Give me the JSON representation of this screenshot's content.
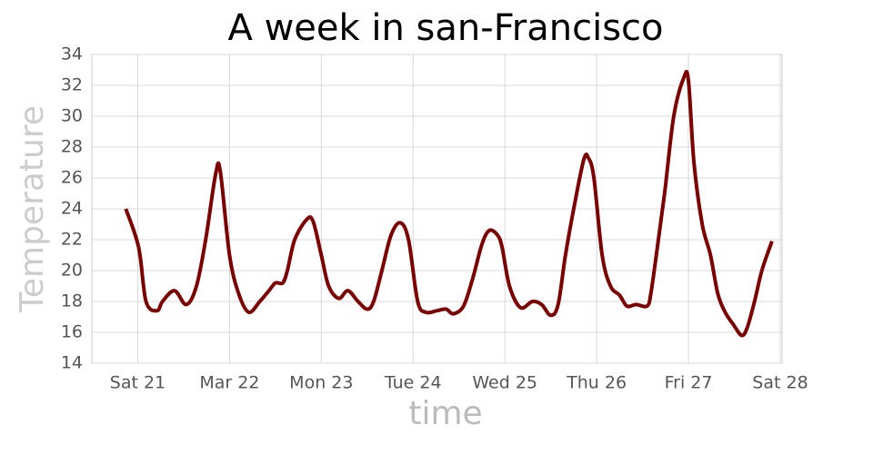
{
  "chart_data": {
    "type": "line",
    "title": "A week in san-Francisco",
    "x_label": "time",
    "y_label": "Temperature",
    "color": "#7b0000",
    "grid": true,
    "x": [
      -0.13,
      0.01,
      0.09,
      0.21,
      0.27,
      0.4,
      0.53,
      0.64,
      0.74,
      0.85,
      0.9,
      1.0,
      1.1,
      1.21,
      1.33,
      1.43,
      1.5,
      1.58,
      1.63,
      1.71,
      1.84,
      1.91,
      2.0,
      2.08,
      2.19,
      2.29,
      2.4,
      2.5,
      2.57,
      2.66,
      2.76,
      2.86,
      2.95,
      3.05,
      3.14,
      3.26,
      3.36,
      3.44,
      3.55,
      3.65,
      3.75,
      3.83,
      3.92,
      3.97,
      4.05,
      4.17,
      4.3,
      4.4,
      4.5,
      4.58,
      4.66,
      4.75,
      4.86,
      4.91,
      4.97,
      5.06,
      5.15,
      5.25,
      5.33,
      5.43,
      5.55,
      5.59,
      5.65,
      5.74,
      5.84,
      5.95,
      6.0,
      6.06,
      6.15,
      6.24,
      6.32,
      6.4,
      6.49,
      6.58,
      6.64,
      6.72,
      6.8,
      6.91
    ],
    "values": [
      24,
      21.5,
      18,
      17.4,
      18,
      18.7,
      17.8,
      19,
      22,
      26.3,
      26.4,
      21,
      18.5,
      17.3,
      18,
      18.7,
      19.2,
      19.2,
      20,
      22,
      23.3,
      23.2,
      21,
      19,
      18.2,
      18.7,
      18,
      17.5,
      18,
      20,
      22.3,
      23.1,
      22,
      18,
      17.3,
      17.4,
      17.5,
      17.2,
      17.7,
      19.5,
      21.7,
      22.6,
      22.3,
      21.5,
      19,
      17.6,
      18,
      17.8,
      17.1,
      17.8,
      21,
      24,
      27.2,
      27.3,
      26,
      21,
      19,
      18.4,
      17.7,
      17.8,
      17.7,
      18.5,
      21,
      25,
      30,
      32.5,
      32.3,
      27,
      23,
      21,
      18.5,
      17.3,
      16.5,
      15.8,
      16.3,
      18,
      20,
      21.9
    ],
    "xlim": [
      -0.5,
      7.02
    ],
    "xticks": [
      {
        "value": 0,
        "label": "Sat 21"
      },
      {
        "value": 1,
        "label": "Mar 22"
      },
      {
        "value": 2,
        "label": "Mon 23"
      },
      {
        "value": 3,
        "label": "Tue 24"
      },
      {
        "value": 4,
        "label": "Wed 25"
      },
      {
        "value": 5,
        "label": "Thu 26"
      },
      {
        "value": 6,
        "label": "Fri 27"
      },
      {
        "value": 7,
        "label": "Sat 28"
      }
    ],
    "ylim": [
      14,
      34
    ],
    "yticks": [
      14,
      16,
      18,
      20,
      22,
      24,
      26,
      28,
      30,
      32,
      34
    ]
  }
}
